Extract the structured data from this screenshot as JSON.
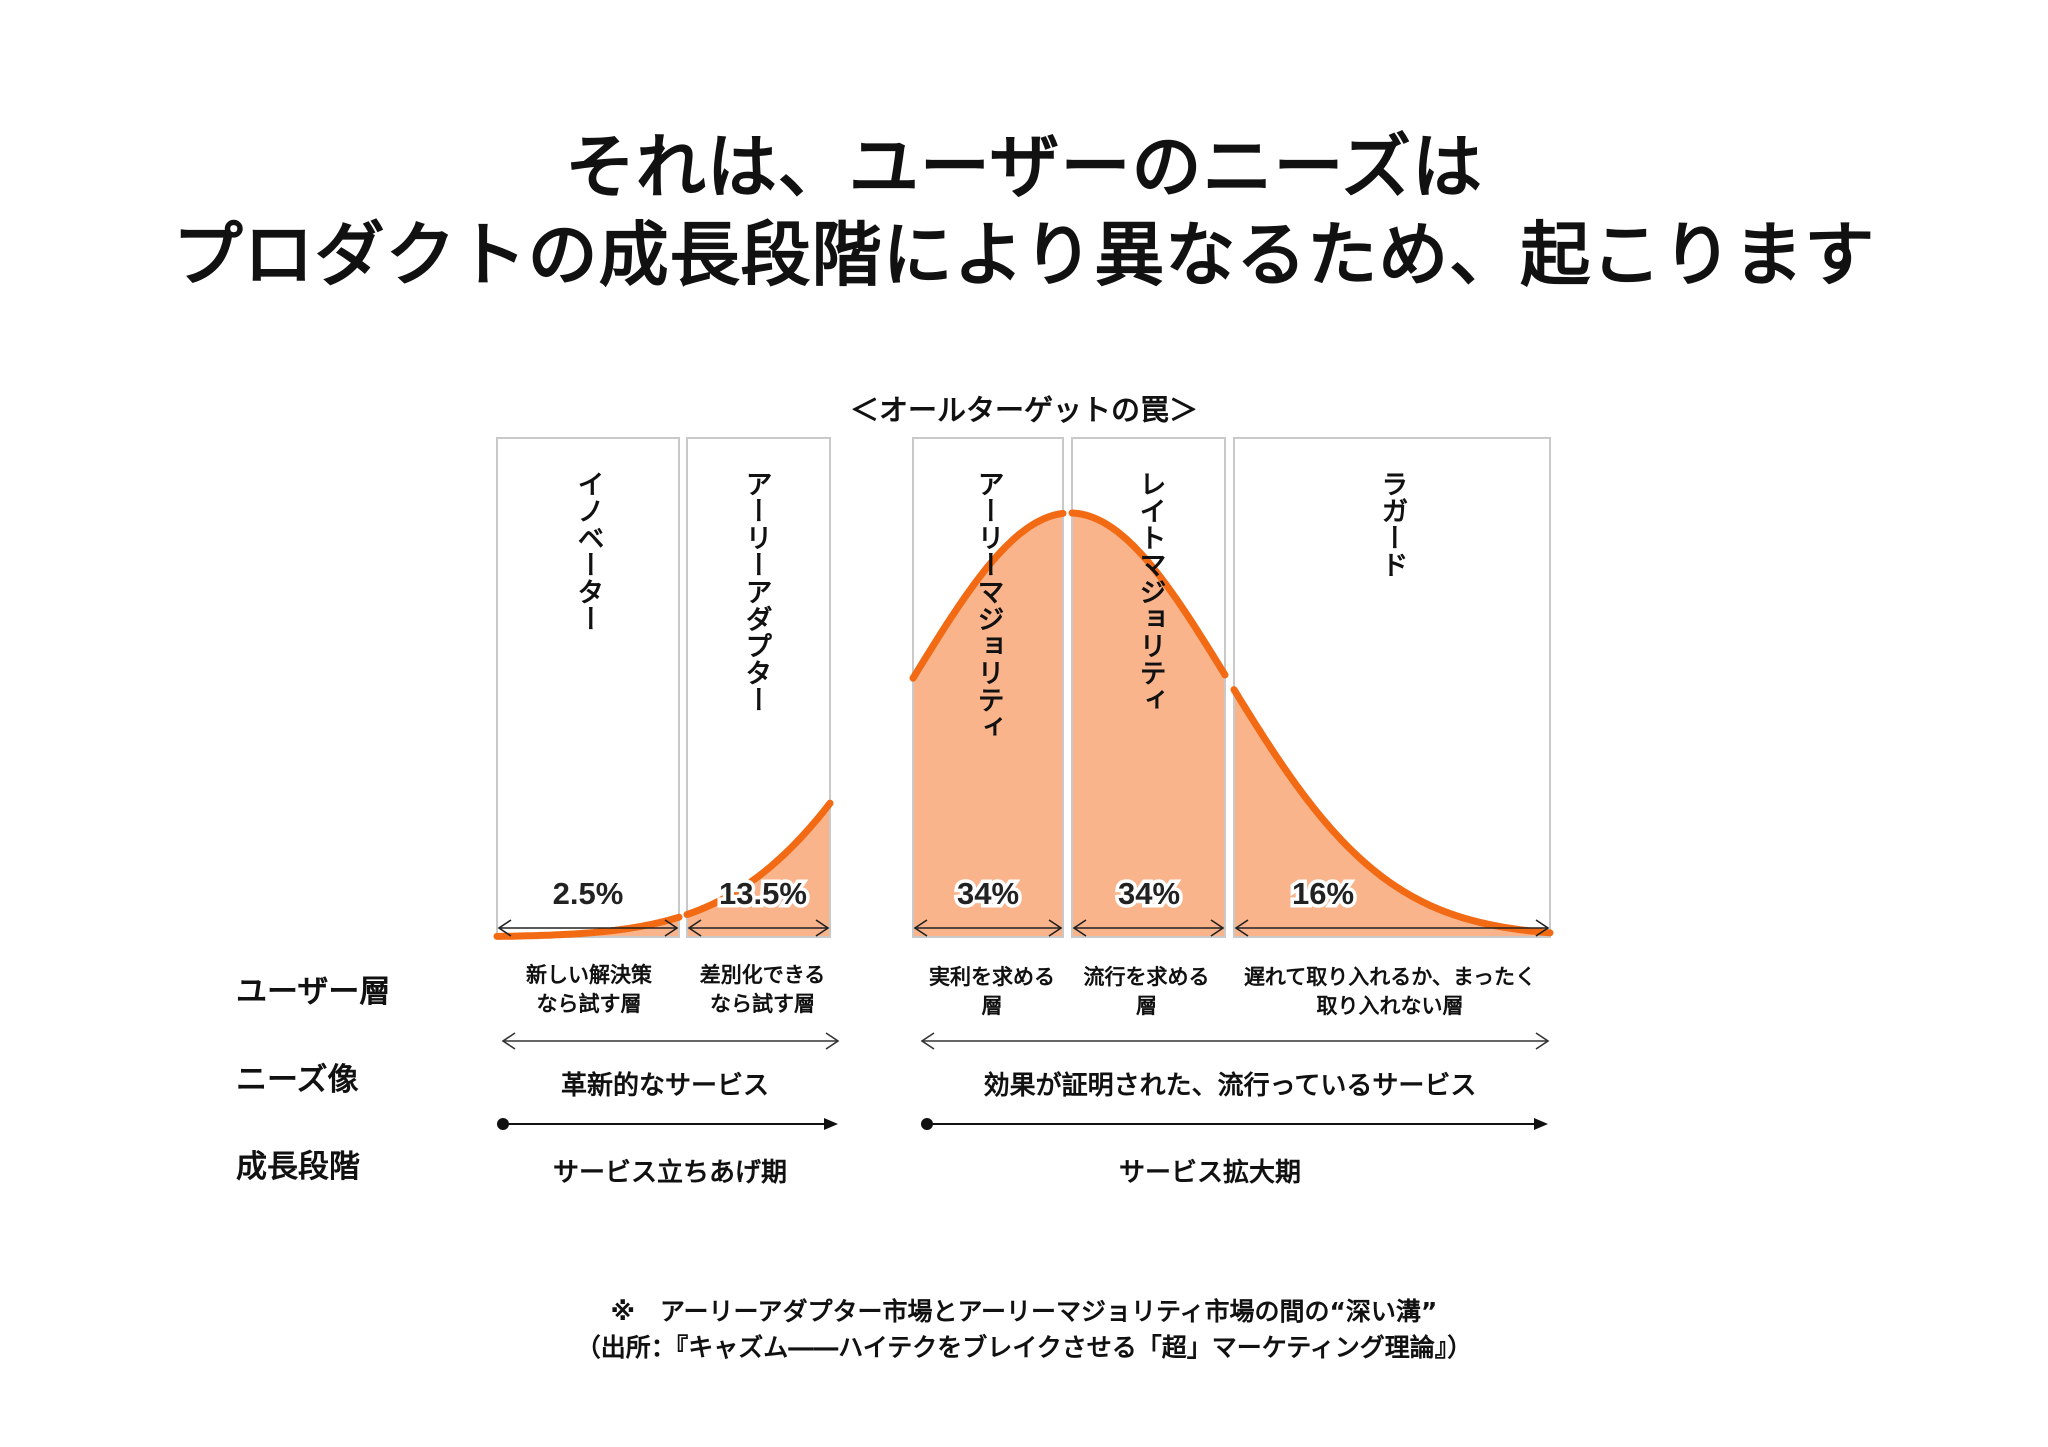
{
  "headline": {
    "line1": "それは、ユーザーのニーズは",
    "line2": "プロダクトの成長段階により異なるため、起こります"
  },
  "chart_data": {
    "type": "area",
    "title": "＜オールターゲットの罠＞",
    "curve": "normal distribution (diffusion of innovations)",
    "categories": [
      "イノベーター",
      "アーリーアダプター",
      "アーリーマジョリティ",
      "レイトマジョリティ",
      "ラガード"
    ],
    "values": [
      2.5,
      13.5,
      34,
      34,
      16
    ],
    "value_labels": [
      "2.5%",
      "13.5%",
      "34%",
      "34%",
      "16%"
    ],
    "unit": "%",
    "gap_between": [
      "アーリーアダプター",
      "アーリーマジョリティ"
    ],
    "fill_color": "#f9b48b",
    "line_color": "#f26a13"
  },
  "rows": {
    "user_layer": {
      "label": "ユーザー層",
      "items": [
        "新しい解決策\nなら試す層",
        "差別化できる\nなら試す層",
        "実利を求める\n層",
        "流行を求める\n層",
        "遅れて取り入れるか、まったく\n取り入れない層"
      ]
    },
    "needs": {
      "label": "ニーズ像",
      "left": "革新的なサービス",
      "right": "効果が証明された、流行っているサービス"
    },
    "stage": {
      "label": "成長段階",
      "left": "サービス立ちあげ期",
      "right": "サービス拡大期"
    }
  },
  "footnote": {
    "line1": "※　アーリーアダプター市場とアーリーマジョリティ市場の間の“深い溝”",
    "line2": "（出所：『キャズム――ハイテクをブレイクさせる「超」マーケティング理論』）"
  }
}
